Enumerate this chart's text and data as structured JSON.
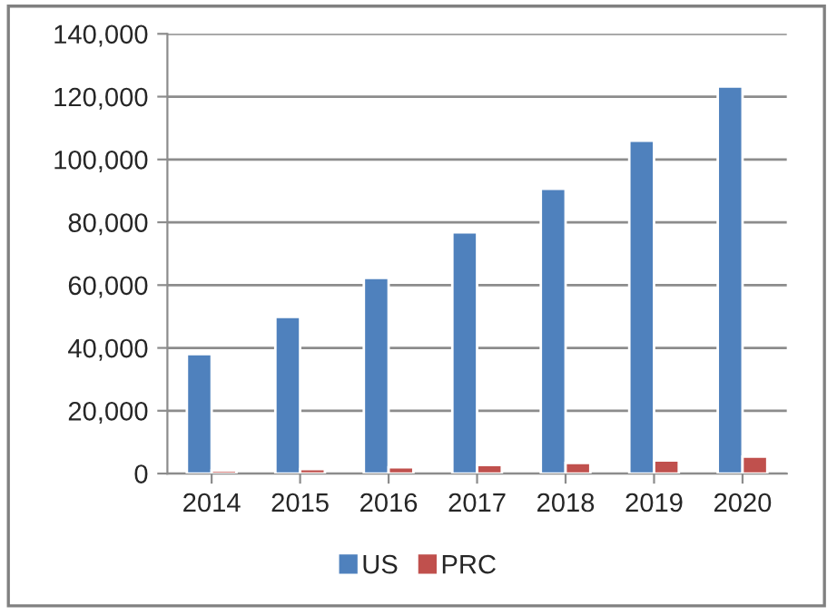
{
  "chart_data": {
    "type": "bar",
    "categories": [
      "2014",
      "2015",
      "2016",
      "2017",
      "2018",
      "2019",
      "2020"
    ],
    "series": [
      {
        "name": "US",
        "color": "#4f81bd",
        "values": [
          38000,
          49900,
          62300,
          76800,
          90700,
          106000,
          123200
        ]
      },
      {
        "name": "PRC",
        "color": "#c0504d",
        "values": [
          1000,
          1400,
          2000,
          2700,
          3400,
          4200,
          5400
        ]
      }
    ],
    "ylim": [
      0,
      140000
    ],
    "yticks": [
      {
        "value": 0,
        "label": "0"
      },
      {
        "value": 20000,
        "label": "20,000"
      },
      {
        "value": 40000,
        "label": "40,000"
      },
      {
        "value": 60000,
        "label": "60,000"
      },
      {
        "value": 80000,
        "label": "80,000"
      },
      {
        "value": 100000,
        "label": "100,000"
      },
      {
        "value": 120000,
        "label": "120,000"
      },
      {
        "value": 140000,
        "label": "140,000"
      }
    ],
    "grid": "y",
    "legend": "bottom"
  }
}
